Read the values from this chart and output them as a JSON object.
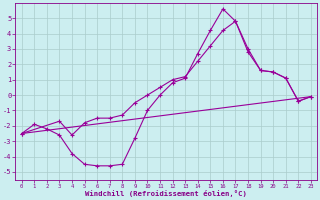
{
  "xlabel": "Windchill (Refroidissement éolien,°C)",
  "bg_color": "#cceef0",
  "line_color": "#990099",
  "grid_color": "#aacccc",
  "xlim": [
    -0.5,
    23.5
  ],
  "ylim": [
    -5.5,
    6.0
  ],
  "xticks": [
    0,
    1,
    2,
    3,
    4,
    5,
    6,
    7,
    8,
    9,
    10,
    11,
    12,
    13,
    14,
    15,
    16,
    17,
    18,
    19,
    20,
    21,
    22,
    23
  ],
  "yticks": [
    -5,
    -4,
    -3,
    -2,
    -1,
    0,
    1,
    2,
    3,
    4,
    5
  ],
  "line1_x": [
    0,
    1,
    2,
    3,
    4,
    5,
    6,
    7,
    8,
    9,
    10,
    11,
    12,
    13,
    14,
    15,
    16,
    17,
    18,
    19,
    20,
    21,
    22,
    23
  ],
  "line1_y": [
    -2.5,
    -1.9,
    -2.2,
    -2.6,
    -3.8,
    -4.5,
    -4.6,
    -4.6,
    -4.5,
    -2.8,
    -1.0,
    0.0,
    0.8,
    1.1,
    2.7,
    4.2,
    5.6,
    4.8,
    3.0,
    1.6,
    1.5,
    1.1,
    -0.4,
    -0.1
  ],
  "line2_x": [
    0,
    23
  ],
  "line2_y": [
    -2.5,
    -0.1
  ],
  "line3_x": [
    0,
    3,
    4,
    5,
    6,
    7,
    8,
    9,
    10,
    11,
    12,
    13,
    14,
    15,
    16,
    17,
    18,
    19,
    20,
    21,
    22,
    23
  ],
  "line3_y": [
    -2.5,
    -1.7,
    -2.6,
    -1.8,
    -1.5,
    -1.5,
    -1.3,
    -0.5,
    0.0,
    0.5,
    1.0,
    1.2,
    2.2,
    3.2,
    4.2,
    4.8,
    2.8,
    1.6,
    1.5,
    1.1,
    -0.4,
    -0.1
  ]
}
